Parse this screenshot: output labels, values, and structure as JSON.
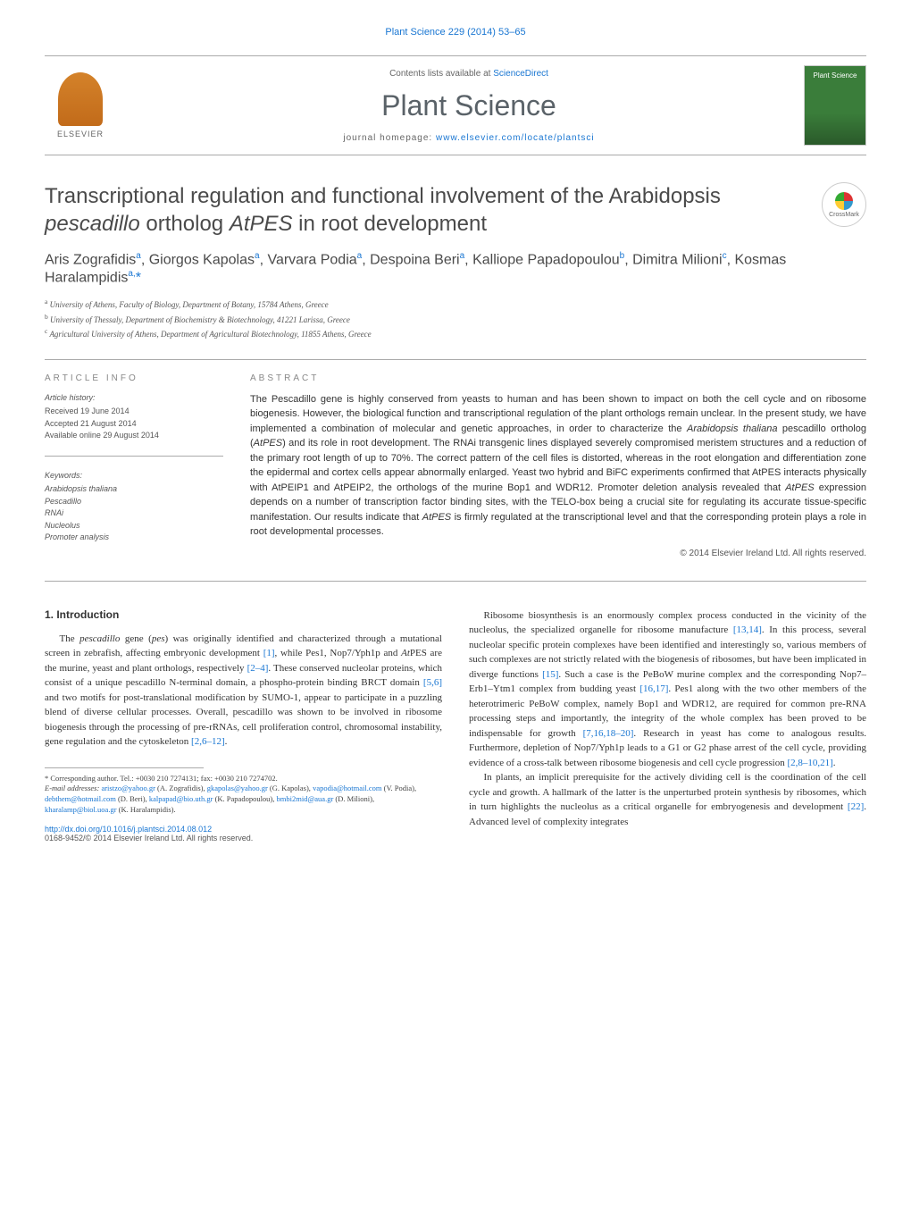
{
  "header": {
    "top_citation": "Plant Science 229 (2014) 53–65",
    "contents_prefix": "Contents lists available at ",
    "contents_link": "ScienceDirect",
    "journal_name": "Plant Science",
    "homepage_prefix": "journal homepage: ",
    "homepage_url": "www.elsevier.com/locate/plantsci",
    "elsevier_label": "ELSEVIER",
    "cover_label": "Plant Science",
    "crossmark_label": "CrossMark"
  },
  "article": {
    "title_part1": "Transcriptional regulation and functional involvement of the Arabidopsis ",
    "title_italic": "pescadillo",
    "title_part2": " ortholog ",
    "title_italic2": "AtPES",
    "title_part3": " in root development",
    "authors_html": "Aris Zografidis<sup>a</sup>, Giorgos Kapolas<sup>a</sup>, Varvara Podia<sup>a</sup>, Despoina Beri<sup>a</sup>, Kalliope Papadopoulou<sup>b</sup>, Dimitra Milioni<sup>c</sup>, Kosmas Haralampidis<sup>a,</sup><span class='corr'>*</span>",
    "affiliations": [
      "a University of Athens, Faculty of Biology, Department of Botany, 15784 Athens, Greece",
      "b University of Thessaly, Department of Biochemistry & Biotechnology, 41221 Larissa, Greece",
      "c Agricultural University of Athens, Department of Agricultural Biotechnology, 11855 Athens, Greece"
    ]
  },
  "info": {
    "heading": "article info",
    "history_label": "Article history:",
    "received": "Received 19 June 2014",
    "accepted": "Accepted 21 August 2014",
    "online": "Available online 29 August 2014",
    "keywords_label": "Keywords:",
    "keywords": [
      "Arabidopsis thaliana",
      "Pescadillo",
      "RNAi",
      "Nucleolus",
      "Promoter analysis"
    ]
  },
  "abstract": {
    "heading": "abstract",
    "text": "The Pescadillo gene is highly conserved from yeasts to human and has been shown to impact on both the cell cycle and on ribosome biogenesis. However, the biological function and transcriptional regulation of the plant orthologs remain unclear. In the present study, we have implemented a combination of molecular and genetic approaches, in order to characterize the <span class='italic'>Arabidopsis thaliana</span> pescadillo ortholog (<span class='italic'>AtPES</span>) and its role in root development. The RNAi transgenic lines displayed severely compromised meristem structures and a reduction of the primary root length of up to 70%. The correct pattern of the cell files is distorted, whereas in the root elongation and differentiation zone the epidermal and cortex cells appear abnormally enlarged. Yeast two hybrid and BiFC experiments confirmed that AtPES interacts physically with AtPEIP1 and AtPEIP2, the orthologs of the murine Bop1 and WDR12. Promoter deletion analysis revealed that <span class='italic'>AtPES</span> expression depends on a number of transcription factor binding sites, with the TELO-box being a crucial site for regulating its accurate tissue-specific manifestation. Our results indicate that <span class='italic'>AtPES</span> is firmly regulated at the transcriptional level and that the corresponding protein plays a role in root developmental processes.",
    "copyright": "© 2014 Elsevier Ireland Ltd. All rights reserved."
  },
  "body": {
    "section_heading": "1. Introduction",
    "col1_p1": "The <span class='italic'>pescadillo</span> gene (<span class='italic'>pes</span>) was originally identified and characterized through a mutational screen in zebrafish, affecting embryonic development <a>[1]</a>, while Pes1, Nop7/Yph1p and <span class='italic'>At</span>PES are the murine, yeast and plant orthologs, respectively <a>[2–4]</a>. These conserved nucleolar proteins, which consist of a unique pescadillo N-terminal domain, a phospho-protein binding BRCT domain <a>[5,6]</a> and two motifs for post-translational modification by SUMO-1, appear to participate in a puzzling blend of diverse cellular processes. Overall, pescadillo was shown to be involved in ribosome biogenesis through the processing of pre-rRNAs, cell proliferation control, chromosomal instability, gene regulation and the cytoskeleton <a>[2,6–12]</a>.",
    "col2_p1": "Ribosome biosynthesis is an enormously complex process conducted in the vicinity of the nucleolus, the specialized organelle for ribosome manufacture <a>[13,14]</a>. In this process, several nucleolar specific protein complexes have been identified and interestingly so, various members of such complexes are not strictly related with the biogenesis of ribosomes, but have been implicated in diverge functions <a>[15]</a>. Such a case is the PeBoW murine complex and the corresponding Nop7–Erb1–Ytm1 complex from budding yeast <a>[16,17]</a>. Pes1 along with the two other members of the heterotrimeric PeBoW complex, namely Bop1 and WDR12, are required for common pre-RNA processing steps and importantly, the integrity of the whole complex has been proved to be indispensable for growth <a>[7,16,18–20]</a>. Research in yeast has come to analogous results. Furthermore, depletion of Nop7/Yph1p leads to a G1 or G2 phase arrest of the cell cycle, providing evidence of a cross-talk between ribosome biogenesis and cell cycle progression <a>[2,8–10,21]</a>.",
    "col2_p2": "In plants, an implicit prerequisite for the actively dividing cell is the coordination of the cell cycle and growth. A hallmark of the latter is the unperturbed protein synthesis by ribosomes, which in turn highlights the nucleolus as a critical organelle for embryogenesis and development <a>[22]</a>. Advanced level of complexity integrates"
  },
  "footnotes": {
    "corr": "* Corresponding author. Tel.: +0030 210 7274131; fax: +0030 210 7274702.",
    "emails_label": "E-mail addresses:",
    "emails": " <a>aristzo@yahoo.gr</a> (A. Zografidis), <a>gkapolas@yahoo.gr</a> (G. Kapolas), <a>vapodia@hotmail.com</a> (V. Podia), <a>debthem@hotmail.com</a> (D. Beri), <a>kalpapad@bio.uth.gr</a> (K. Papadopoulou), <a>bmbi2mid@aua.gr</a> (D. Milioni), <a>kharalamp@biol.uoa.gr</a> (K. Haralampidis).",
    "doi": "http://dx.doi.org/10.1016/j.plantsci.2014.08.012",
    "issn": "0168-9452/© 2014 Elsevier Ireland Ltd. All rights reserved."
  },
  "colors": {
    "link": "#1976d2",
    "text": "#333333",
    "muted": "#666666",
    "elsevier_orange": "#d4822a",
    "cover_green": "#3a7d3a"
  }
}
